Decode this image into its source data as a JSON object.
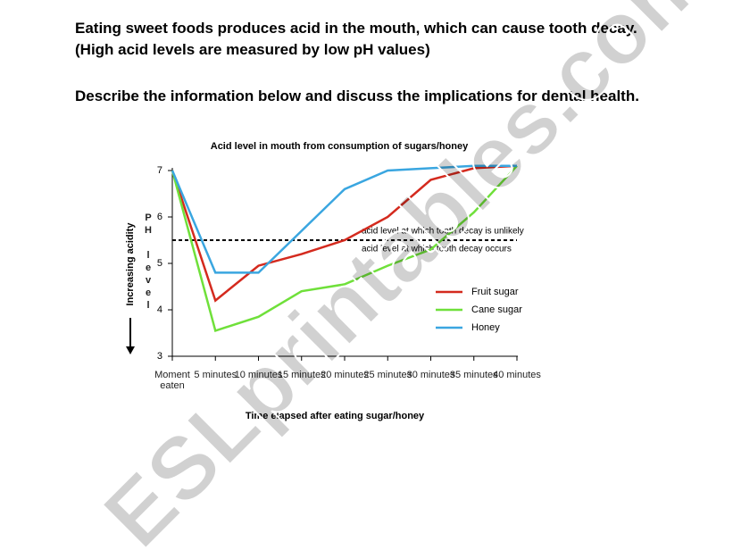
{
  "document": {
    "paragraphs": [
      "Eating sweet foods produces acid in the mouth, which can cause tooth decay. (High acid levels are measured by low pH values)",
      "Describe the information below and discuss the implications for dental health."
    ]
  },
  "watermark": "ESLprintables.com",
  "chart_data": {
    "type": "line",
    "title": "Acid level in mouth from consumption of sugars/honey",
    "x_label": "Time elapsed after eating sugar/honey",
    "y_label": "PH level",
    "y_arrow_label": "Increasing acidity",
    "categories": [
      "Moment eaten",
      "5 minutes",
      "10 minutes",
      "15 minutes",
      "20 minutes",
      "25 minutes",
      "30 minutes",
      "35 minutes",
      "40 minutes"
    ],
    "series": [
      {
        "name": "Fruit sugar",
        "color": "#d42a1e",
        "values": [
          7,
          4.2,
          4.95,
          5.2,
          5.5,
          6.0,
          6.8,
          7.05,
          7.1
        ]
      },
      {
        "name": "Cane sugar",
        "color": "#6fe03a",
        "values": [
          7,
          3.55,
          3.85,
          4.4,
          4.55,
          4.95,
          5.3,
          6.1,
          7.1
        ]
      },
      {
        "name": "Honey",
        "color": "#3aa6e0",
        "values": [
          7,
          4.8,
          4.8,
          5.7,
          6.6,
          7.0,
          7.05,
          7.1,
          7.1
        ]
      }
    ],
    "threshold": {
      "value": 5.5,
      "label_above": "acid level at which tooth decay is unlikely",
      "label_below": "acid level at which tooth decay occurs"
    },
    "ylim": [
      3,
      7
    ],
    "yticks": [
      3,
      4,
      5,
      6,
      7
    ],
    "grid": false,
    "legend": "right"
  }
}
